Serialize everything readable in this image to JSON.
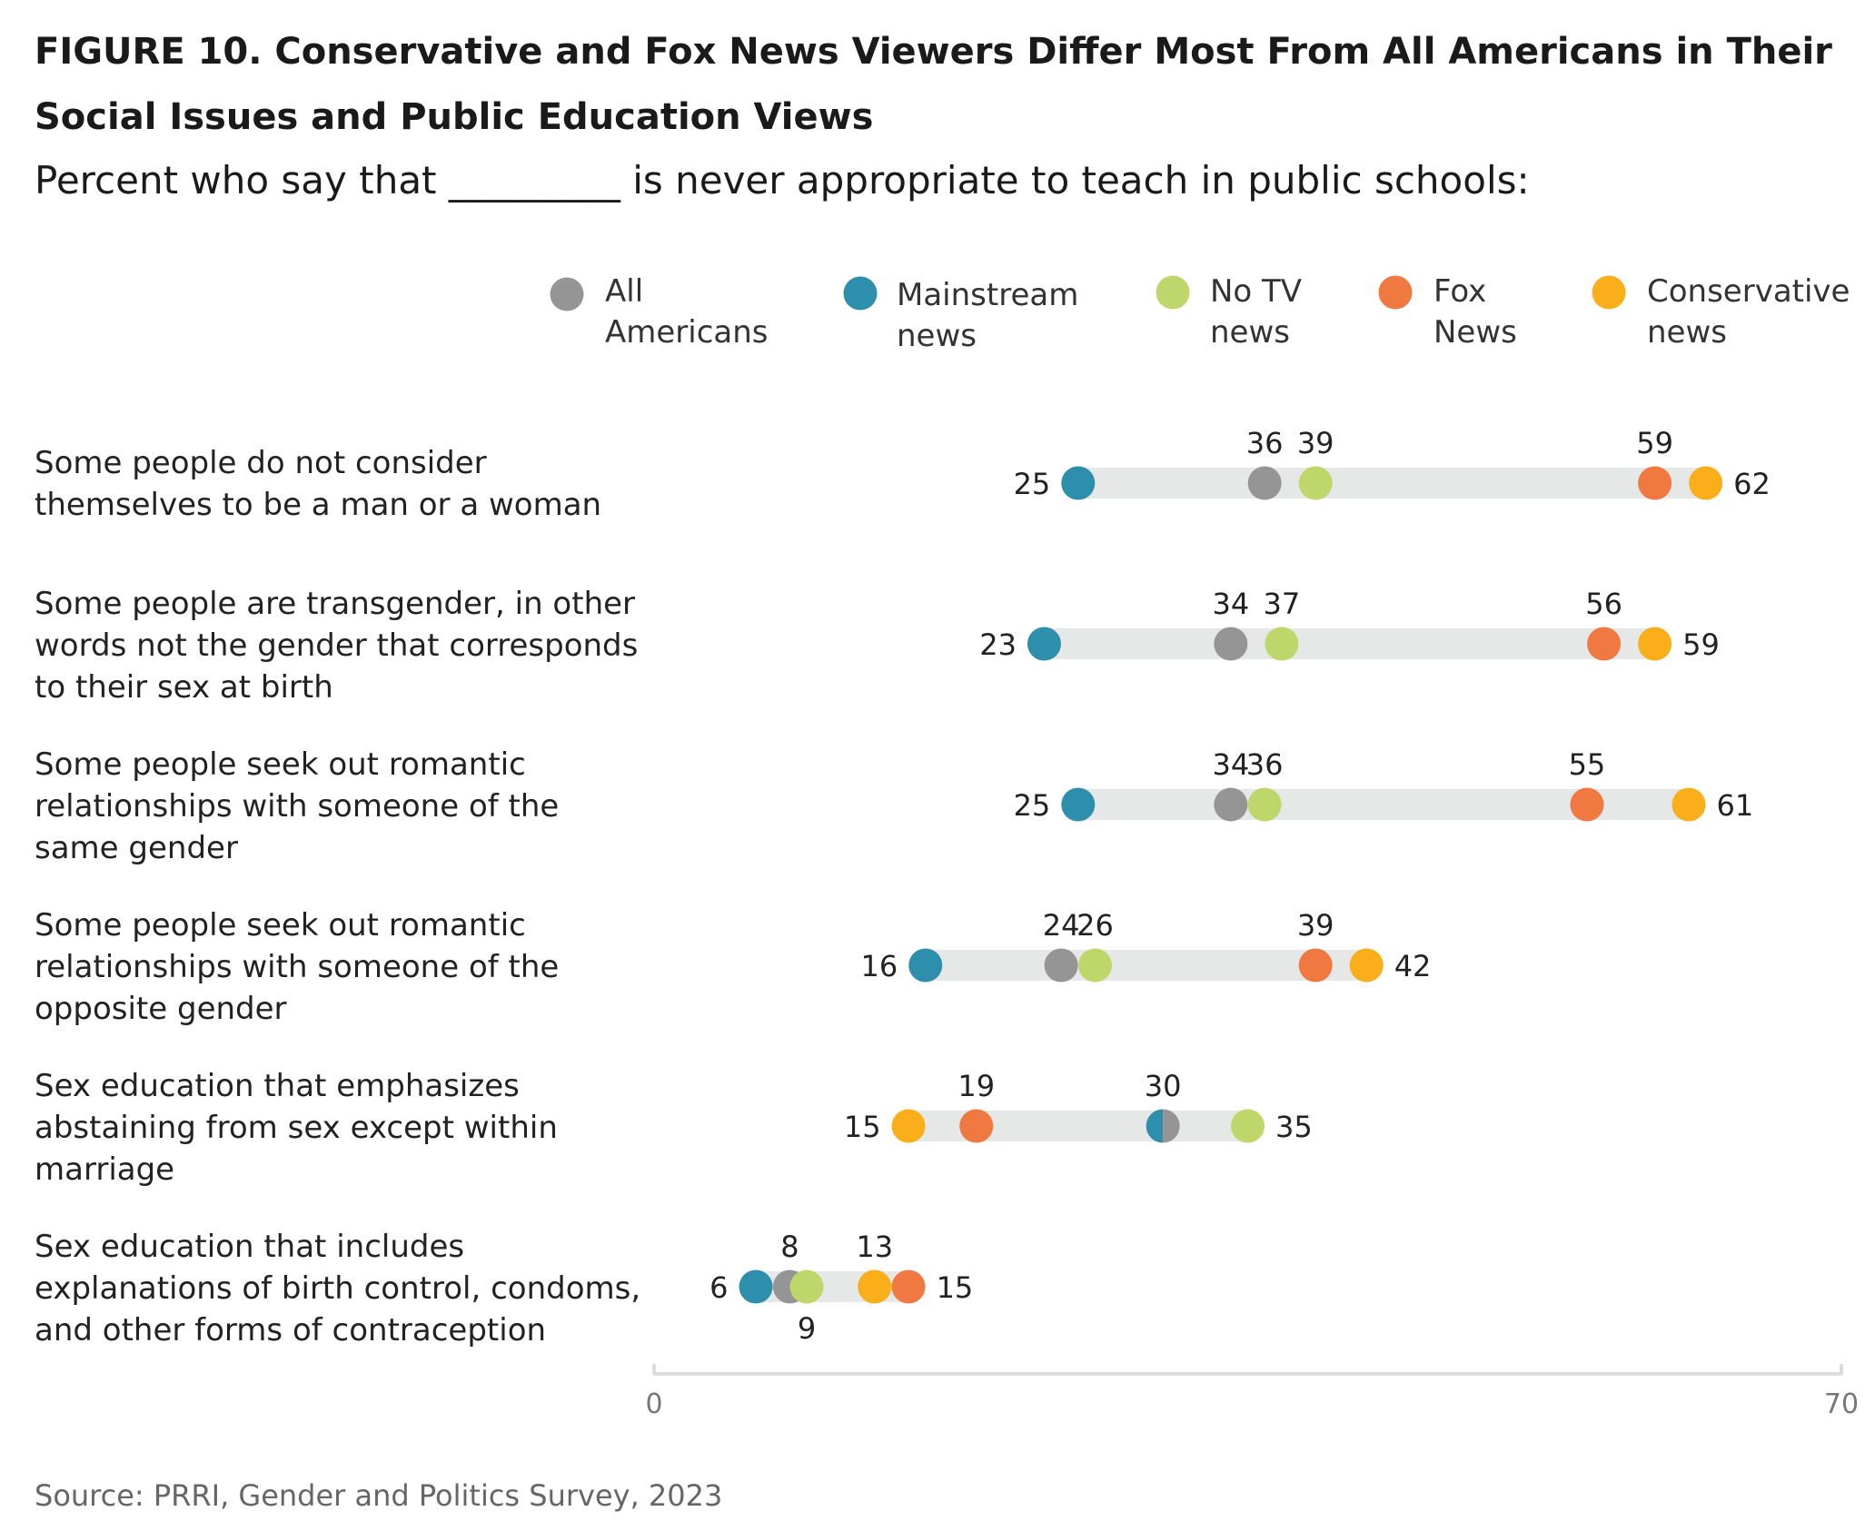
{
  "chart_data": {
    "type": "dot",
    "title_lines": [
      "FIGURE 10. Conservative and Fox News Viewers Differ Most From All Americans in Their",
      "Social Issues and Public Education Views"
    ],
    "subtitle": "Percent who say that _________ is never appropriate to teach in public schools:",
    "source": "Source: PRRI, Gender and Politics Survey, 2023",
    "xlim": [
      0,
      70
    ],
    "x_ticks": [
      "0",
      "70"
    ],
    "grid": false,
    "legend_position": "top",
    "series": [
      {
        "key": "all",
        "name_lines": [
          "All",
          "Americans"
        ],
        "color": "#959595"
      },
      {
        "key": "mainstream",
        "name_lines": [
          "Mainstream",
          "news"
        ],
        "color": "#2e8fad"
      },
      {
        "key": "notv",
        "name_lines": [
          "No TV",
          "news"
        ],
        "color": "#bfd76a"
      },
      {
        "key": "fox",
        "name_lines": [
          "Fox",
          "News"
        ],
        "color": "#f07941"
      },
      {
        "key": "conservative",
        "name_lines": [
          "Conservative",
          "news"
        ],
        "color": "#f9ae1a"
      }
    ],
    "categories": [
      {
        "label_lines": [
          "Some people do not consider",
          "themselves to be a man or a woman"
        ],
        "values": {
          "all": 36,
          "mainstream": 25,
          "notv": 39,
          "fox": 59,
          "conservative": 62
        }
      },
      {
        "label_lines": [
          "Some people are transgender, in other",
          "words not the gender that corresponds",
          "to their sex at birth"
        ],
        "values": {
          "all": 34,
          "mainstream": 23,
          "notv": 37,
          "fox": 56,
          "conservative": 59
        }
      },
      {
        "label_lines": [
          "Some people seek out romantic",
          "relationships with someone of the",
          "same gender"
        ],
        "values": {
          "all": 34,
          "mainstream": 25,
          "notv": 36,
          "fox": 55,
          "conservative": 61
        }
      },
      {
        "label_lines": [
          "Some people seek out romantic",
          "relationships with someone of the",
          "opposite gender"
        ],
        "values": {
          "all": 24,
          "mainstream": 16,
          "notv": 26,
          "fox": 39,
          "conservative": 42
        }
      },
      {
        "label_lines": [
          "Sex education that emphasizes",
          "abstaining from sex except within",
          "marriage"
        ],
        "values": {
          "all": 30,
          "mainstream": 30,
          "notv": 35,
          "fox": 19,
          "conservative": 15
        }
      },
      {
        "label_lines": [
          "Sex education that includes",
          "explanations of birth control, condoms,",
          "and other forms of contraception"
        ],
        "values": {
          "all": 8,
          "mainstream": 6,
          "notv": 9,
          "fox": 15,
          "conservative": 13
        }
      }
    ]
  }
}
